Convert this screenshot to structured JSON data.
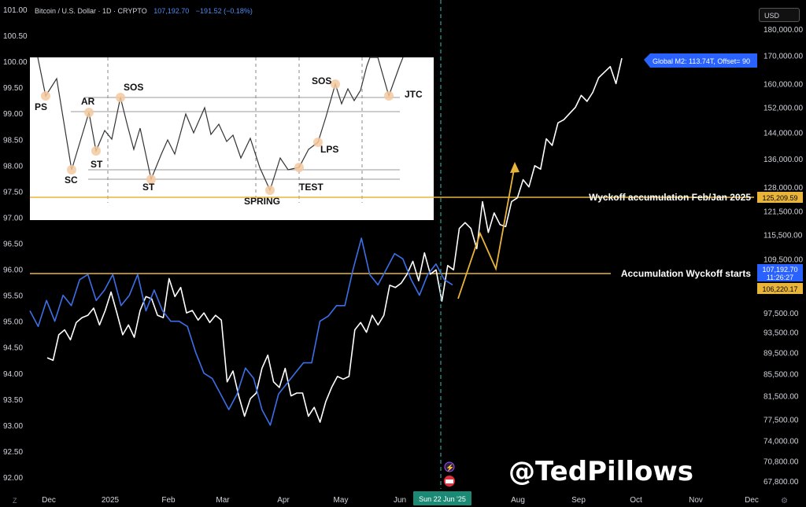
{
  "header": {
    "symbol": "Bitcoin / U.S. Dollar · 1D · CRYPTO",
    "price": "107,192.70",
    "change": "−191.52 (−0.18%)"
  },
  "usd_button": "USD",
  "handle": "@TedPillows",
  "colors": {
    "background": "#000000",
    "btc_line": "#ffffff",
    "m2_line": "#3d6fe8",
    "accumulation_line": "#e8b53a",
    "dashed_teal": "#26a69a",
    "inset_bg": "#ffffff",
    "marker": "#f5c9a0"
  },
  "chart_data": {
    "type": "line",
    "left_axis": {
      "ticks": [
        "101.00",
        "100.50",
        "100.00",
        "99.50",
        "99.00",
        "98.50",
        "98.00",
        "97.50",
        "97.00",
        "96.50",
        "96.00",
        "95.50",
        "95.00",
        "94.50",
        "94.00",
        "93.50",
        "93.00",
        "92.50",
        "92.00"
      ],
      "range": [
        91.85,
        101.05
      ]
    },
    "right_axis": {
      "ticks": [
        "180,000.00",
        "170,000.00",
        "160,000.00",
        "152,000.00",
        "144,000.00",
        "136,000.00",
        "128,000.00",
        "121,500.00",
        "115,500.00",
        "109,500.00",
        "103,500.00",
        "97,500.00",
        "93,500.00",
        "89,500.00",
        "85,500.00",
        "81,500.00",
        "77,500.00",
        "74,000.00",
        "70,800.00",
        "67,800.00"
      ],
      "scale": "log"
    },
    "x_axis": {
      "ticks": [
        "Dec",
        "2025",
        "Feb",
        "Mar",
        "Apr",
        "May",
        "Jun",
        "Jul",
        "Aug",
        "Sep",
        "Oct",
        "Nov",
        "Dec"
      ],
      "cursor_label": "Sun 22 Jun '25"
    },
    "series": [
      {
        "name": "Bitcoin / U.S. Dollar",
        "color": "#ffffff",
        "values": [
          88500,
          88000,
          93000,
          94000,
          92000,
          95500,
          96500,
          97000,
          98500,
          95000,
          98000,
          102000,
          97500,
          93000,
          95000,
          92500,
          98000,
          101000,
          100500,
          97000,
          96500,
          105000,
          101000,
          103000,
          97500,
          98000,
          96000,
          97500,
          95500,
          97000,
          96000,
          84000,
          86000,
          81500,
          78000,
          81000,
          82000,
          86500,
          89000,
          84000,
          83000,
          86500,
          81500,
          82000,
          82000,
          78000,
          79500,
          77000,
          80500,
          83000,
          85000,
          84500,
          85000,
          94000,
          95500,
          93500,
          97000,
          95000,
          97000,
          103500,
          103000,
          104000,
          106000,
          109000,
          104500,
          111000,
          106000,
          107000,
          100000,
          108000,
          107000,
          117000,
          118500,
          117000,
          112000,
          124000,
          116000,
          121000,
          118000,
          117500,
          124000,
          125000,
          130000,
          128000,
          134000,
          133000,
          142000,
          140000,
          147000,
          148000,
          150000,
          152000,
          156000,
          154000,
          157000,
          162000,
          164000,
          166000,
          160000,
          169000
        ]
      },
      {
        "name": "Global M2",
        "color": "#3d6fe8",
        "values": [
          95.2,
          94.9,
          95.4,
          95.0,
          95.5,
          95.3,
          95.8,
          95.9,
          95.4,
          95.6,
          95.9,
          95.3,
          95.5,
          95.9,
          95.2,
          95.6,
          95.2,
          95.0,
          95.0,
          94.9,
          94.4,
          94.0,
          93.9,
          93.6,
          93.3,
          93.6,
          94.1,
          93.9,
          93.3,
          93.0,
          93.6,
          93.8,
          94.0,
          94.2,
          94.2,
          95.0,
          95.1,
          95.3,
          95.3,
          96.0,
          96.6,
          95.9,
          95.7,
          96.0,
          96.3,
          96.2,
          95.8,
          95.5,
          95.9,
          96.1,
          95.8,
          95.7
        ]
      }
    ],
    "series_label": "Global M2: 113.74T, Offset= 90",
    "annotations": [
      {
        "text": "Wyckoff accumulation Feb/Jan 2025",
        "price_tag": "125,209.59"
      },
      {
        "text": "Accumulation Wyckoff starts",
        "price_tag": "107,192.70",
        "time_tag": "11:26:27",
        "second_tag": "106,220.17"
      }
    ],
    "inset": {
      "labels": [
        "PS",
        "SC",
        "AR",
        "ST",
        "SOS",
        "ST",
        "SPRING",
        "TEST",
        "LPS",
        "SOS",
        "JTC"
      ]
    }
  }
}
